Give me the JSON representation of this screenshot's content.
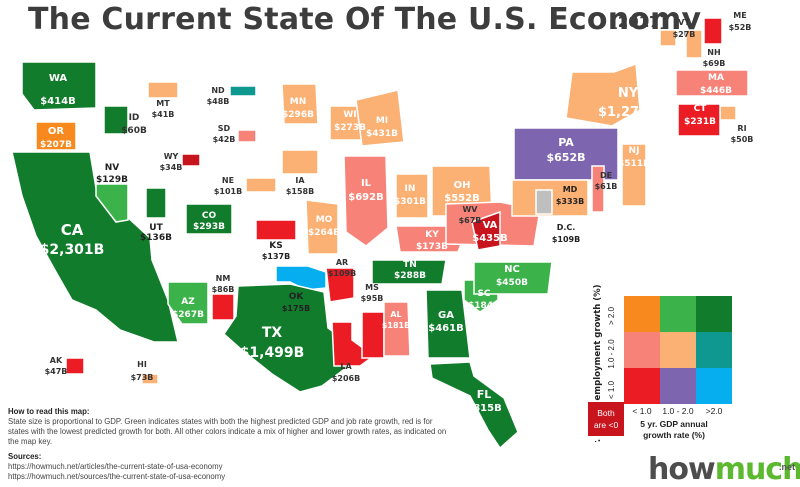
{
  "title": "The Current State Of The U.S. Economy",
  "year": "[2017]",
  "colors": {
    "dark_green": "#127c2d",
    "mid_green": "#3cb34a",
    "orange": "#f7891f",
    "peach": "#fbb074",
    "salmon": "#f78378",
    "teal": "#0e9890",
    "red": "#ec1c24",
    "purple": "#7d65b0",
    "light_blue": "#07aeef",
    "gray": "#bfbfbf",
    "dark_red": "#c8141c"
  },
  "states": [
    {
      "abbr": "WA",
      "value": "$414B",
      "color": "dark_green"
    },
    {
      "abbr": "OR",
      "value": "$207B",
      "color": "orange"
    },
    {
      "abbr": "CA",
      "value": "$2,301B",
      "color": "dark_green"
    },
    {
      "abbr": "ID",
      "value": "$60B",
      "color": "dark_green"
    },
    {
      "abbr": "NV",
      "value": "$129B",
      "color": "mid_green"
    },
    {
      "abbr": "UT",
      "value": "$136B",
      "color": "dark_green"
    },
    {
      "abbr": "AZ",
      "value": "$267B",
      "color": "mid_green"
    },
    {
      "abbr": "MT",
      "value": "$41B",
      "color": "peach"
    },
    {
      "abbr": "WY",
      "value": "$34B",
      "color": "dark_red"
    },
    {
      "abbr": "CO",
      "value": "$293B",
      "color": "dark_green"
    },
    {
      "abbr": "NM",
      "value": "$86B",
      "color": "red"
    },
    {
      "abbr": "ND",
      "value": "$48B",
      "color": "teal"
    },
    {
      "abbr": "SD",
      "value": "$42B",
      "color": "salmon"
    },
    {
      "abbr": "NE",
      "value": "$101B",
      "color": "peach"
    },
    {
      "abbr": "KS",
      "value": "$137B",
      "color": "red"
    },
    {
      "abbr": "OK",
      "value": "$175B",
      "color": "light_blue"
    },
    {
      "abbr": "TX",
      "value": "$1,499B",
      "color": "dark_green"
    },
    {
      "abbr": "MN",
      "value": "$296B",
      "color": "peach"
    },
    {
      "abbr": "IA",
      "value": "$158B",
      "color": "peach"
    },
    {
      "abbr": "MO",
      "value": "$264B",
      "color": "peach"
    },
    {
      "abbr": "AR",
      "value": "$109B",
      "color": "red"
    },
    {
      "abbr": "LA",
      "value": "$206B",
      "color": "red"
    },
    {
      "abbr": "WI",
      "value": "$273B",
      "color": "peach"
    },
    {
      "abbr": "IL",
      "value": "$692B",
      "color": "salmon"
    },
    {
      "abbr": "MI",
      "value": "$431B",
      "color": "peach"
    },
    {
      "abbr": "IN",
      "value": "$301B",
      "color": "peach"
    },
    {
      "abbr": "OH",
      "value": "$552B",
      "color": "peach"
    },
    {
      "abbr": "KY",
      "value": "$173B",
      "color": "salmon"
    },
    {
      "abbr": "TN",
      "value": "$288B",
      "color": "dark_green"
    },
    {
      "abbr": "MS",
      "value": "$95B",
      "color": "red"
    },
    {
      "abbr": "AL",
      "value": "$181B",
      "color": "salmon"
    },
    {
      "abbr": "GA",
      "value": "$461B",
      "color": "dark_green"
    },
    {
      "abbr": "FL",
      "value": "$815B",
      "color": "dark_green"
    },
    {
      "abbr": "SC",
      "value": "$184B",
      "color": "mid_green"
    },
    {
      "abbr": "NC",
      "value": "$450B",
      "color": "mid_green"
    },
    {
      "abbr": "VA",
      "value": "$435B",
      "color": "salmon"
    },
    {
      "abbr": "WV",
      "value": "$67B",
      "color": "dark_red"
    },
    {
      "abbr": "PA",
      "value": "$652B",
      "color": "purple"
    },
    {
      "abbr": "NY",
      "value": "$1,275B",
      "color": "peach"
    },
    {
      "abbr": "VT",
      "value": "$27B",
      "color": "peach"
    },
    {
      "abbr": "NH",
      "value": "$69B",
      "color": "peach"
    },
    {
      "abbr": "ME",
      "value": "$52B",
      "color": "red"
    },
    {
      "abbr": "MA",
      "value": "$446B",
      "color": "salmon"
    },
    {
      "abbr": "RI",
      "value": "$50B",
      "color": "peach"
    },
    {
      "abbr": "CT",
      "value": "$231B",
      "color": "red"
    },
    {
      "abbr": "NJ",
      "value": "$511B",
      "color": "peach"
    },
    {
      "abbr": "DE",
      "value": "$61B",
      "color": "salmon"
    },
    {
      "abbr": "MD",
      "value": "$333B",
      "color": "peach"
    },
    {
      "abbr": "D.C.",
      "value": "$109B",
      "color": "gray"
    },
    {
      "abbr": "AK",
      "value": "$47B",
      "color": "red"
    },
    {
      "abbr": "HI",
      "value": "$73B",
      "color": "peach"
    }
  ],
  "legend": {
    "y_axis_title": "5 yr. annual employment growth (%)",
    "y_ticks": [
      "> 2.0",
      "1.0 - 2.0",
      "< 1.0"
    ],
    "x_ticks": [
      "< 1.0",
      "1.0 - 2.0",
      ">2.0"
    ],
    "x_axis_title_line1": "5 yr. GDP annual",
    "x_axis_title_line2": "growth rate (%)",
    "both_negative_line1": "Both",
    "both_negative_line2": "are <0",
    "grid": [
      [
        "orange",
        "mid_green",
        "dark_green"
      ],
      [
        "salmon",
        "peach",
        "teal"
      ],
      [
        "red",
        "purple",
        "light_blue"
      ]
    ]
  },
  "howto": {
    "heading": "How to read this map:",
    "body": "State size is proportional to GDP. Green indicates states with both the highest predicted GDP and job rate growth, red is for states with the lowest predicted growth for both. All other colors indicate a mix of higher and lower growth rates, as indicated on the map key."
  },
  "sources": {
    "heading": "Sources:",
    "links": [
      "https://howmuch.net/articles/the-current-state-of-usa-economy",
      "https://howmuch.net/sources/the-current-state-of-usa-economy"
    ]
  },
  "brand": {
    "how": "how",
    "much": "much",
    "net": ".net"
  }
}
